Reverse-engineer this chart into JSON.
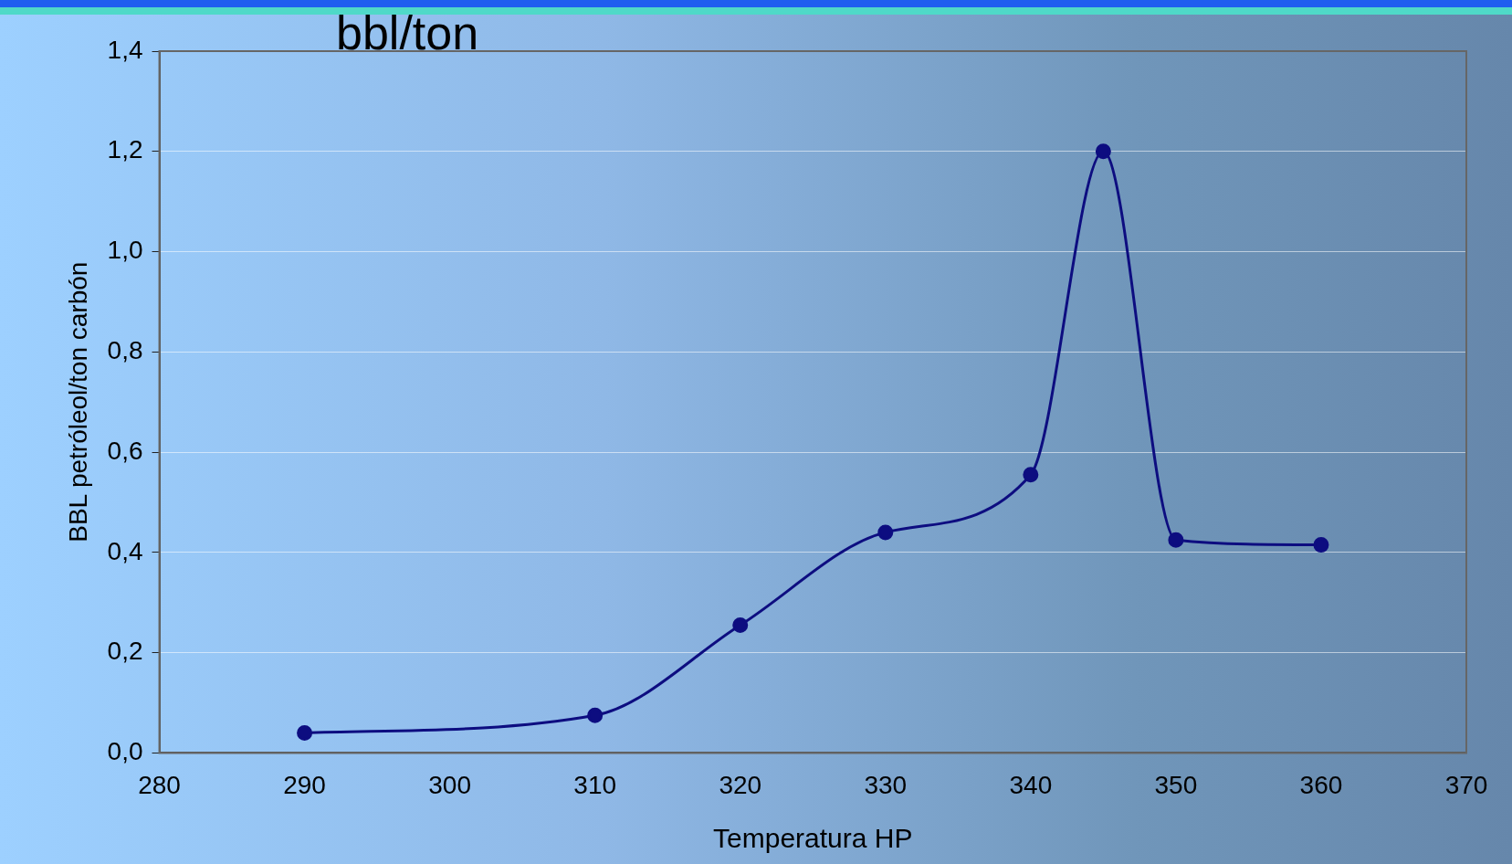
{
  "chart_data": {
    "type": "line",
    "title": "bbl/ton",
    "xlabel": "Temperatura HP",
    "ylabel": "BBL petróleol/ton carbón",
    "x": [
      290,
      310,
      320,
      330,
      340,
      345,
      350,
      360
    ],
    "series": [
      {
        "color": "#0d0d80",
        "values": [
          0.04,
          0.075,
          0.255,
          0.44,
          0.555,
          1.2,
          0.425,
          0.415
        ]
      }
    ],
    "xlim": [
      280,
      370
    ],
    "xticks": [
      280,
      290,
      300,
      310,
      320,
      330,
      340,
      350,
      360,
      370
    ],
    "ylim": [
      0,
      1.4
    ],
    "yticks": [
      {
        "value": 0,
        "label": "0,0"
      },
      {
        "value": 0.2,
        "label": "0,2"
      },
      {
        "value": 0.4,
        "label": "0,4"
      },
      {
        "value": 0.6,
        "label": "0,6"
      },
      {
        "value": 0.8,
        "label": "0,8"
      },
      {
        "value": 1,
        "label": "1,0"
      },
      {
        "value": 1.2,
        "label": "1,2"
      },
      {
        "value": 1.4,
        "label": "1,4"
      }
    ],
    "grid": "y",
    "legend": false,
    "marker": "circle",
    "line_style": "solid"
  }
}
